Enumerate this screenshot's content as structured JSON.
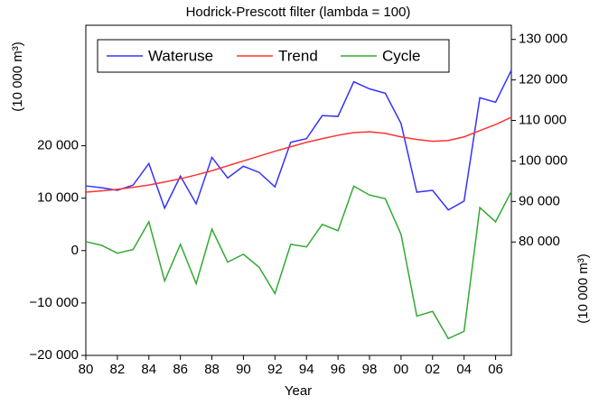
{
  "chart_data": {
    "type": "line",
    "title": "Hodrick-Prescott filter (lambda = 100)",
    "x_label": "Year",
    "y_label": "(10 000 m³)",
    "y2_label": "(10 000 m³)",
    "x": [
      1980,
      1981,
      1982,
      1983,
      1984,
      1985,
      1986,
      1987,
      1988,
      1989,
      1990,
      1991,
      1992,
      1993,
      1994,
      1995,
      1996,
      1997,
      1998,
      1999,
      2000,
      2001,
      2002,
      2003,
      2004,
      2005,
      2006,
      2007
    ],
    "xlim": [
      1980,
      2007
    ],
    "xticks": [
      {
        "value": 1980,
        "label": "80"
      },
      {
        "value": 1982,
        "label": "82"
      },
      {
        "value": 1984,
        "label": "84"
      },
      {
        "value": 1986,
        "label": "86"
      },
      {
        "value": 1988,
        "label": "88"
      },
      {
        "value": 1990,
        "label": "90"
      },
      {
        "value": 1992,
        "label": "92"
      },
      {
        "value": 1994,
        "label": "94"
      },
      {
        "value": 1996,
        "label": "96"
      },
      {
        "value": 1998,
        "label": "98"
      },
      {
        "value": 2000,
        "label": "00"
      },
      {
        "value": 2002,
        "label": "02"
      },
      {
        "value": 2004,
        "label": "04"
      },
      {
        "value": 2006,
        "label": "06"
      }
    ],
    "ylim": [
      -20000,
      43000
    ],
    "yticks": [
      {
        "value": -20000,
        "label": "−20 000"
      },
      {
        "value": -10000,
        "label": "−10 000"
      },
      0,
      {
        "value": 10000,
        "label": "10 000"
      },
      {
        "value": 20000,
        "label": "20 000"
      }
    ],
    "y2lim": [
      52000,
      133500
    ],
    "y2ticks": [
      {
        "value": 80000,
        "label": "80 000"
      },
      {
        "value": 90000,
        "label": "90 000"
      },
      {
        "value": 100000,
        "label": "100 000"
      },
      {
        "value": 110000,
        "label": "110 000"
      },
      {
        "value": 120000,
        "label": "120 000"
      },
      {
        "value": 130000,
        "label": "130 000"
      }
    ],
    "series": [
      {
        "name": "Wateruse",
        "color": "#3333ff",
        "axis": "y2",
        "values": [
          93850,
          93400,
          92750,
          94050,
          99350,
          88350,
          96250,
          89450,
          100900,
          95800,
          98700,
          97150,
          93600,
          104600,
          105500,
          111200,
          111000,
          119550,
          117800,
          116700,
          109250,
          92300,
          92750,
          87900,
          90100,
          115600,
          114500,
          122400
        ]
      },
      {
        "name": "Trend",
        "color": "#ff3333",
        "axis": "y2",
        "values": [
          92300,
          92600,
          93000,
          93500,
          94050,
          94800,
          95600,
          96550,
          97600,
          98800,
          100000,
          101200,
          102400,
          103500,
          104600,
          105500,
          106350,
          107000,
          107200,
          106800,
          105950,
          105300,
          104850,
          105050,
          105950,
          107500,
          109000,
          110800
        ]
      },
      {
        "name": "Cycle",
        "color": "#33aa33",
        "values": [
          1700,
          1000,
          -500,
          200,
          5500,
          -5800,
          1200,
          -6300,
          4100,
          -2200,
          -700,
          -3200,
          -8200,
          1200,
          700,
          5000,
          3800,
          12300,
          10600,
          9900,
          3100,
          -12500,
          -11600,
          -16800,
          -15400,
          8200,
          5500,
          11300
        ]
      }
    ]
  }
}
